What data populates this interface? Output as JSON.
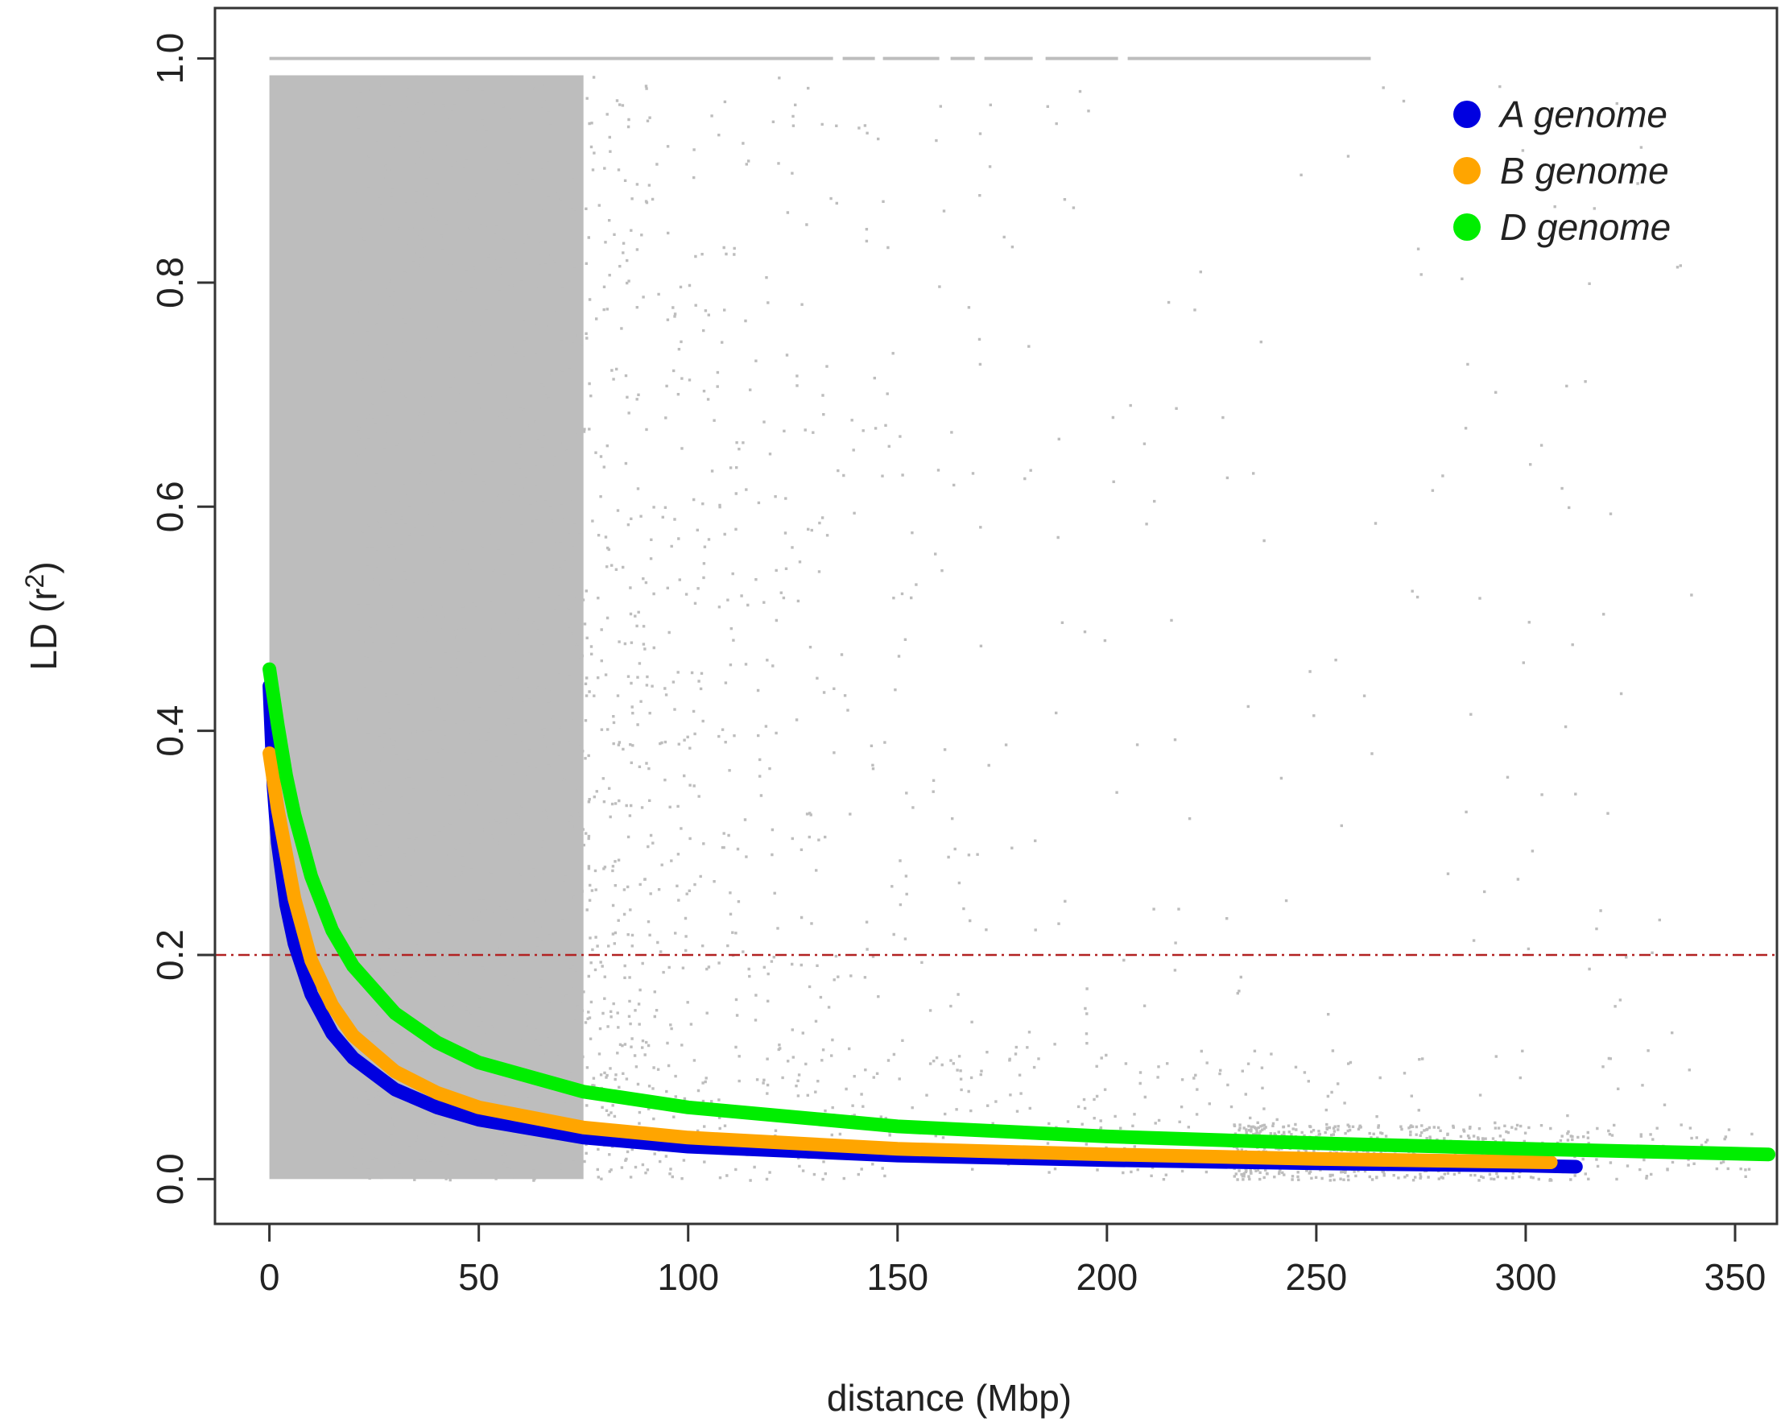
{
  "chart_data": {
    "type": "scatter",
    "title": "",
    "xlabel": "distance (Mbp)",
    "ylabel_main": "LD (r",
    "ylabel_sup": "2",
    "ylabel_close": ")",
    "xlim": [
      -13,
      360
    ],
    "ylim": [
      -0.04,
      1.045
    ],
    "x_ticks": [
      0,
      50,
      100,
      150,
      200,
      250,
      300,
      350
    ],
    "x_tick_labels": [
      "0",
      "50",
      "100",
      "150",
      "200",
      "250",
      "300",
      "350"
    ],
    "y_ticks": [
      0.0,
      0.2,
      0.4,
      0.6,
      0.8,
      1.0
    ],
    "y_tick_labels": [
      "0.0",
      "0.2",
      "0.4",
      "0.6",
      "0.8",
      "1.0"
    ],
    "grid": false,
    "legend_position": "top-right",
    "threshold": {
      "y": 0.2,
      "color": "#b22222",
      "style": "dot-dash"
    },
    "scatter_color": "#bdbdbd",
    "dense_region": {
      "x": [
        0,
        75
      ],
      "y": [
        0,
        0.985
      ]
    },
    "top_band": {
      "y": 1.0,
      "x": [
        0,
        263
      ]
    },
    "series": [
      {
        "name": "A genome",
        "color": "#0000e0",
        "x": [
          0,
          1,
          2,
          4,
          6,
          10,
          15,
          20,
          30,
          40,
          50,
          75,
          100,
          150,
          200,
          250,
          300,
          312
        ],
        "y": [
          0.44,
          0.35,
          0.3,
          0.245,
          0.21,
          0.165,
          0.13,
          0.108,
          0.08,
          0.064,
          0.053,
          0.037,
          0.029,
          0.021,
          0.017,
          0.014,
          0.012,
          0.011
        ]
      },
      {
        "name": "B genome",
        "color": "#ffa500",
        "x": [
          0,
          1,
          2,
          4,
          6,
          10,
          15,
          20,
          30,
          40,
          50,
          75,
          100,
          150,
          200,
          250,
          306
        ],
        "y": [
          0.38,
          0.355,
          0.33,
          0.29,
          0.25,
          0.195,
          0.155,
          0.128,
          0.096,
          0.077,
          0.064,
          0.046,
          0.037,
          0.027,
          0.022,
          0.018,
          0.015
        ]
      },
      {
        "name": "D genome",
        "color": "#00ee00",
        "x": [
          0,
          1,
          2,
          4,
          6,
          10,
          15,
          20,
          30,
          40,
          50,
          75,
          100,
          150,
          200,
          250,
          300,
          358
        ],
        "y": [
          0.455,
          0.43,
          0.405,
          0.36,
          0.325,
          0.27,
          0.222,
          0.19,
          0.148,
          0.122,
          0.104,
          0.078,
          0.064,
          0.047,
          0.038,
          0.032,
          0.027,
          0.022
        ]
      }
    ]
  }
}
